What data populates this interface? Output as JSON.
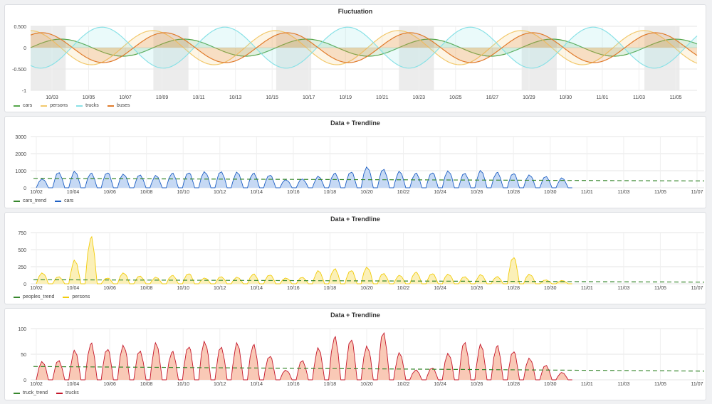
{
  "chart_data": [
    {
      "type": "line",
      "title": "Fluctuation",
      "ylim": [
        -1,
        0.5
      ],
      "y_ticks": [
        "0.500",
        "0",
        "-0.500",
        "-1"
      ],
      "x_ticks": [
        "10/03",
        "10/05",
        "10/07",
        "10/09",
        "10/11",
        "10/13",
        "10/15",
        "10/17",
        "10/19",
        "10/21",
        "10/23",
        "10/25",
        "10/27",
        "10/29",
        "10/30",
        "11/01",
        "11/03",
        "11/05"
      ],
      "legend_position": "bottom-left",
      "series": [
        {
          "name": "cars",
          "color": "#56a64b",
          "period": 7,
          "amplitude": 0.2,
          "phase": 0.0
        },
        {
          "name": "persons",
          "color": "#f2c96d",
          "period": 7,
          "amplitude": 0.4,
          "phase": 1.6
        },
        {
          "name": "trucks",
          "color": "#8ae1e6",
          "period": 7,
          "amplitude": 0.48,
          "phase": 4.2
        },
        {
          "name": "buses",
          "color": "#e07b2b",
          "period": 7,
          "amplitude": 0.35,
          "phase": 1.0
        }
      ],
      "shaded_regions": [
        "weekends"
      ],
      "grid": true
    },
    {
      "type": "area",
      "title": "Data + Trendline",
      "ylim": [
        0,
        3000
      ],
      "y_ticks": [
        "3000",
        "2000",
        "1000",
        "0"
      ],
      "x_ticks": [
        "10/02",
        "10/04",
        "10/06",
        "10/08",
        "10/10",
        "10/12",
        "10/14",
        "10/16",
        "10/18",
        "10/20",
        "10/22",
        "10/24",
        "10/26",
        "10/28",
        "10/30",
        "11/01",
        "11/03",
        "11/05",
        "11/07"
      ],
      "legend_position": "bottom-left",
      "series": [
        {
          "name": "cars_trend",
          "color": "#37872d",
          "style": "dashed",
          "start": 550,
          "end": 400
        },
        {
          "name": "cars",
          "color": "#1f60c4",
          "fill": "#c6d9f4",
          "peaks": [
            550,
            950,
            1000,
            900,
            950,
            850,
            800,
            750,
            900,
            950,
            1000,
            1000,
            950,
            900,
            800,
            500,
            550,
            700,
            900,
            1000,
            1300,
            1150,
            1000,
            900,
            950,
            1050,
            900,
            1050,
            950,
            900,
            800,
            700,
            600
          ]
        }
      ],
      "grid": true
    },
    {
      "type": "area",
      "title": "Data + Trendline",
      "ylim": [
        0,
        750
      ],
      "y_ticks": [
        "750",
        "500",
        "250",
        "0"
      ],
      "x_ticks": [
        "10/02",
        "10/04",
        "10/06",
        "10/08",
        "10/10",
        "10/12",
        "10/14",
        "10/16",
        "10/18",
        "10/20",
        "10/22",
        "10/24",
        "10/26",
        "10/28",
        "10/30",
        "11/01",
        "11/03",
        "11/05",
        "11/07"
      ],
      "legend_position": "bottom-left",
      "series": [
        {
          "name": "peoples_trend",
          "color": "#37872d",
          "style": "dashed",
          "start": 60,
          "end": 25
        },
        {
          "name": "persons",
          "color": "#f2cc0c",
          "fill": "#fbf0b8",
          "peaks": [
            170,
            110,
            360,
            720,
            90,
            170,
            120,
            100,
            130,
            160,
            90,
            110,
            100,
            150,
            140,
            90,
            100,
            200,
            230,
            210,
            260,
            160,
            130,
            180,
            160,
            150,
            110,
            140,
            110,
            420,
            150,
            60,
            50
          ]
        }
      ],
      "grid": true
    },
    {
      "type": "area",
      "title": "Data + Trendline",
      "ylim": [
        0,
        100
      ],
      "y_ticks": [
        "100",
        "50",
        "0"
      ],
      "x_ticks": [
        "10/02",
        "10/04",
        "10/06",
        "10/08",
        "10/10",
        "10/12",
        "10/14",
        "10/16",
        "10/18",
        "10/20",
        "10/22",
        "10/24",
        "10/26",
        "10/28",
        "10/30",
        "11/01",
        "11/03",
        "11/05",
        "11/07"
      ],
      "legend_position": "bottom-left",
      "series": [
        {
          "name": "truck_trend",
          "color": "#37872d",
          "style": "dashed",
          "start": 26,
          "end": 17
        },
        {
          "name": "trucks",
          "color": "#c4162a",
          "fill": "#f9c9b6",
          "peaks": [
            38,
            40,
            60,
            75,
            65,
            72,
            60,
            75,
            58,
            70,
            80,
            68,
            75,
            72,
            50,
            20,
            40,
            65,
            88,
            85,
            70,
            98,
            55,
            20,
            25,
            55,
            78,
            72,
            70,
            60,
            45,
            30,
            15
          ]
        }
      ],
      "grid": true
    }
  ]
}
